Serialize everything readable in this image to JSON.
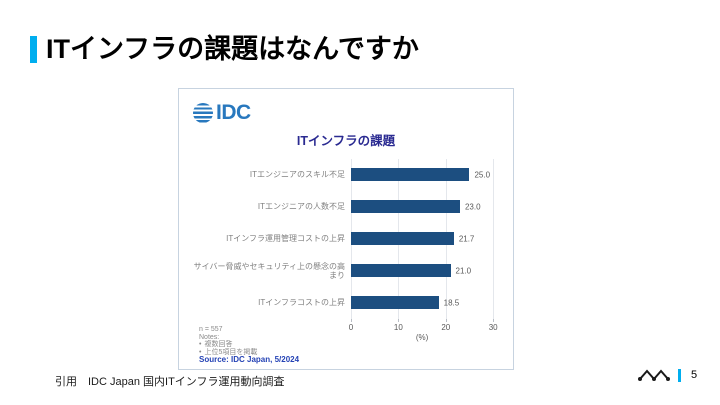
{
  "slide": {
    "title": "ITインフラの課題はなんですか",
    "citation": "引用　IDC Japan 国内ITインフラ運用動向調査",
    "page_number": "5"
  },
  "chart_card": {
    "logo_text": "IDC",
    "title": "ITインフラの課題",
    "notes": {
      "n_label": "n = 557",
      "heading": "Notes:",
      "bullets": [
        "複数回答",
        "上位5項目を掲載"
      ]
    },
    "source": "Source: IDC Japan, 5/2024"
  },
  "chart_data": {
    "type": "bar",
    "orientation": "horizontal",
    "title": "ITインフラの課題",
    "categories": [
      "ITエンジニアのスキル不足",
      "ITエンジニアの人数不足",
      "ITインフラ運用管理コストの上昇",
      "サイバー脅威やセキュリティ上の懸念の高まり",
      "ITインフラコストの上昇"
    ],
    "values": [
      25.0,
      23.0,
      21.7,
      21.0,
      18.5
    ],
    "xlabel": "(%)",
    "xlim": [
      0,
      32.5
    ],
    "xticks": [
      0,
      10,
      20,
      30
    ],
    "grid": true,
    "legend": false
  },
  "colors": {
    "accent": "#00AEEF",
    "bar": "#1C4E80",
    "idc_blue": "#2878BE",
    "navy_title": "#2A2A91",
    "source_blue": "#2543B5",
    "grid": "#E4E7EC",
    "card_border": "#C7D3E0",
    "label_gray": "#808080",
    "value_gray": "#595959"
  }
}
